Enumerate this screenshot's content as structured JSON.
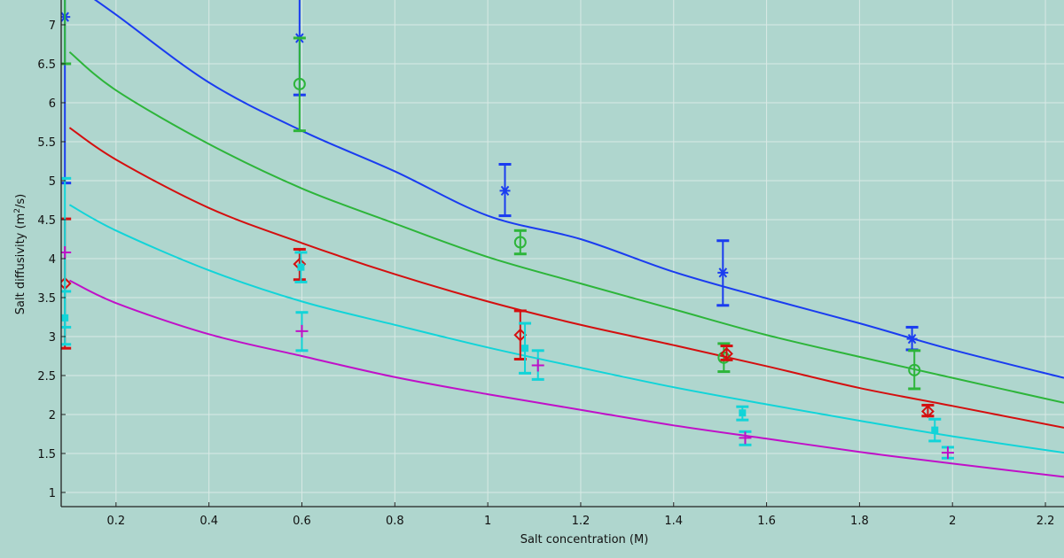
{
  "chart_data": {
    "type": "scatter",
    "title": "",
    "xlabel": "Salt concentration (M)",
    "ylabel_main": "Salt diffusivity (m",
    "ylabel_sup": "2",
    "ylabel_tail": "/s)",
    "xlim": [
      0.082,
      2.24
    ],
    "ylim": [
      0.818,
      7.318
    ],
    "grid": true,
    "background": "#afd6ce",
    "xticks": [
      0.2,
      0.4,
      0.6,
      0.8,
      1,
      1.2,
      1.4,
      1.6,
      1.8,
      2,
      2.2
    ],
    "xtick_labels": [
      "0.2",
      "0.4",
      "0.6",
      "0.8",
      "1",
      "1.2",
      "1.4",
      "1.6",
      "1.8",
      "2",
      "2.2"
    ],
    "yticks": [
      1,
      1.5,
      2,
      2.5,
      3,
      3.5,
      4,
      4.5,
      5,
      5.5,
      6,
      6.5,
      7
    ],
    "ytick_labels": [
      "1",
      "1.5",
      "2",
      "2.5",
      "3",
      "3.5",
      "4",
      "4.5",
      "5",
      "5.5",
      "6",
      "6.5",
      "7"
    ],
    "curve_x": [
      0.1,
      0.2,
      0.4,
      0.6,
      0.8,
      1.0,
      1.2,
      1.4,
      1.6,
      1.8,
      2.0,
      2.24
    ],
    "series": [
      {
        "color": "#1a3cf0",
        "marker": "asterisk",
        "errbar_color": "#1a3cf0",
        "curve_y": [
          7.55,
          7.13,
          6.26,
          5.64,
          5.12,
          4.55,
          4.25,
          3.83,
          3.49,
          3.17,
          2.83,
          2.47
        ],
        "points": [
          {
            "x": 0.09,
            "y": 7.1,
            "lo": 4.97,
            "hi": 7.6
          },
          {
            "x": 0.595,
            "y": 6.83,
            "lo": 6.1,
            "hi": 7.6
          },
          {
            "x": 1.037,
            "y": 4.87,
            "lo": 4.55,
            "hi": 5.21
          },
          {
            "x": 1.506,
            "y": 3.82,
            "lo": 3.4,
            "hi": 4.23
          },
          {
            "x": 1.913,
            "y": 2.97,
            "lo": 2.83,
            "hi": 3.12
          }
        ]
      },
      {
        "color": "#2db53a",
        "marker": "circle",
        "errbar_color": "#2db53a",
        "curve_y": [
          6.65,
          6.16,
          5.47,
          4.9,
          4.45,
          4.02,
          3.68,
          3.35,
          3.02,
          2.74,
          2.47,
          2.15
        ],
        "points": [
          {
            "x": 0.09,
            "y": 7.6,
            "lo": 6.5,
            "hi": 8.0
          },
          {
            "x": 0.595,
            "y": 6.24,
            "lo": 5.64,
            "hi": 6.83
          },
          {
            "x": 1.07,
            "y": 4.21,
            "lo": 4.06,
            "hi": 4.36
          },
          {
            "x": 1.508,
            "y": 2.73,
            "lo": 2.55,
            "hi": 2.91
          },
          {
            "x": 1.918,
            "y": 2.57,
            "lo": 2.33,
            "hi": 2.82
          }
        ]
      },
      {
        "color": "#d40f0f",
        "marker": "diamond",
        "errbar_color": "#d40f0f",
        "curve_y": [
          5.68,
          5.27,
          4.65,
          4.2,
          3.8,
          3.45,
          3.15,
          2.89,
          2.62,
          2.34,
          2.11,
          1.83
        ],
        "points": [
          {
            "x": 0.09,
            "y": 3.68,
            "lo": 2.85,
            "hi": 4.51
          },
          {
            "x": 0.595,
            "y": 3.93,
            "lo": 3.73,
            "hi": 4.12
          },
          {
            "x": 1.07,
            "y": 3.02,
            "lo": 2.71,
            "hi": 3.33
          },
          {
            "x": 1.514,
            "y": 2.78,
            "lo": 2.7,
            "hi": 2.88
          },
          {
            "x": 1.947,
            "y": 2.04,
            "lo": 1.98,
            "hi": 2.12
          }
        ]
      },
      {
        "color": "#12d4d8",
        "marker": "square",
        "errbar_color": "#12d4d8",
        "curve_y": [
          4.69,
          4.36,
          3.85,
          3.45,
          3.15,
          2.86,
          2.6,
          2.35,
          2.13,
          1.92,
          1.72,
          1.51
        ],
        "points": [
          {
            "x": 0.09,
            "y": 3.24,
            "lo": 2.9,
            "hi": 3.58
          },
          {
            "x": 0.598,
            "y": 3.89,
            "lo": 3.7,
            "hi": 4.08
          },
          {
            "x": 1.08,
            "y": 2.85,
            "lo": 2.53,
            "hi": 3.17
          },
          {
            "x": 1.548,
            "y": 2.02,
            "lo": 1.93,
            "hi": 2.1
          },
          {
            "x": 1.962,
            "y": 1.8,
            "lo": 1.66,
            "hi": 1.94
          }
        ]
      },
      {
        "color": "#c010c8",
        "marker": "plus",
        "errbar_color": "#12d4d8",
        "curve_y": [
          3.72,
          3.43,
          3.03,
          2.75,
          2.48,
          2.26,
          2.06,
          1.86,
          1.69,
          1.52,
          1.37,
          1.2
        ],
        "points": [
          {
            "x": 0.09,
            "y": 4.08,
            "lo": 3.12,
            "hi": 5.03
          },
          {
            "x": 0.6,
            "y": 3.07,
            "lo": 2.82,
            "hi": 3.31
          },
          {
            "x": 1.108,
            "y": 2.63,
            "lo": 2.45,
            "hi": 2.82
          },
          {
            "x": 1.554,
            "y": 1.7,
            "lo": 1.61,
            "hi": 1.78
          },
          {
            "x": 1.99,
            "y": 1.51,
            "lo": 1.44,
            "hi": 1.58
          }
        ]
      }
    ]
  }
}
